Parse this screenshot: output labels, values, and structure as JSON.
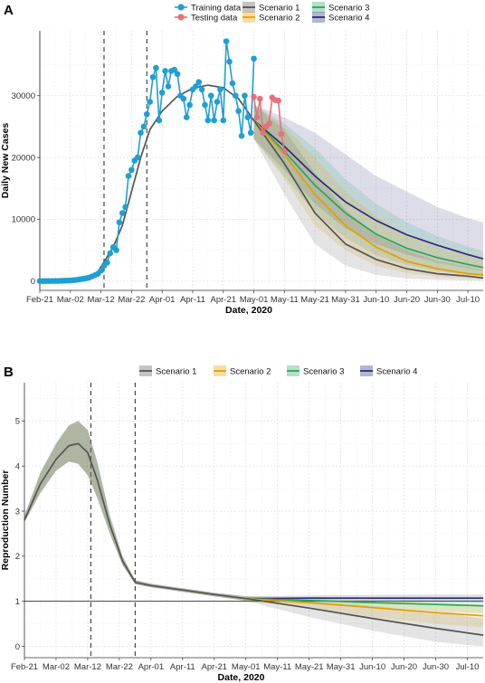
{
  "chart_data": [
    {
      "type": "line",
      "panel": "A",
      "xlabel": "Date, 2020",
      "ylabel": "Daily New Cases",
      "ylim": [
        -1500,
        40500
      ],
      "xlim": [
        "2020-02-21",
        "2020-07-15"
      ],
      "grid": true,
      "legend_position": "top",
      "x_ticks": [
        "Feb-21",
        "Mar-02",
        "Mar-12",
        "Mar-22",
        "Apr-01",
        "Apr-11",
        "Apr-21",
        "May-01",
        "May-11",
        "May-21",
        "May-31",
        "Jun-10",
        "Jun-20",
        "Jun-30",
        "Jul-10"
      ],
      "y_ticks": [
        0,
        10000,
        20000,
        30000
      ],
      "vlines": [
        "2020-02-21",
        "2020-03-13",
        "2020-03-27"
      ],
      "vline_styles": [
        "solid",
        "dashed",
        "dashed"
      ],
      "legend": [
        {
          "label": "Training data",
          "color": "#1f9fd3",
          "kind": "point-line"
        },
        {
          "label": "Scenario 1",
          "color": "#555555",
          "kind": "band-line"
        },
        {
          "label": "Scenario 3",
          "color": "#27a661",
          "kind": "band-line"
        },
        {
          "label": "Testing data",
          "color": "#e8707a",
          "kind": "point-line"
        },
        {
          "label": "Scenario 2",
          "color": "#e69f00",
          "kind": "band-line"
        },
        {
          "label": "Scenario 4",
          "color": "#2c2b7a",
          "kind": "band-line"
        }
      ],
      "training": {
        "name": "Training data",
        "color": "#1f9fd3",
        "x": [
          "2020-02-21",
          "2020-02-22",
          "2020-02-23",
          "2020-02-24",
          "2020-02-25",
          "2020-02-26",
          "2020-02-27",
          "2020-02-28",
          "2020-02-29",
          "2020-03-01",
          "2020-03-02",
          "2020-03-03",
          "2020-03-04",
          "2020-03-05",
          "2020-03-06",
          "2020-03-07",
          "2020-03-08",
          "2020-03-09",
          "2020-03-10",
          "2020-03-11",
          "2020-03-12",
          "2020-03-13",
          "2020-03-14",
          "2020-03-15",
          "2020-03-16",
          "2020-03-17",
          "2020-03-18",
          "2020-03-19",
          "2020-03-20",
          "2020-03-21",
          "2020-03-22",
          "2020-03-23",
          "2020-03-24",
          "2020-03-25",
          "2020-03-26",
          "2020-03-27",
          "2020-03-28",
          "2020-03-29",
          "2020-03-30",
          "2020-03-31",
          "2020-04-01",
          "2020-04-02",
          "2020-04-03",
          "2020-04-04",
          "2020-04-05",
          "2020-04-06",
          "2020-04-07",
          "2020-04-08",
          "2020-04-09",
          "2020-04-10",
          "2020-04-11",
          "2020-04-12",
          "2020-04-13",
          "2020-04-14",
          "2020-04-15",
          "2020-04-16",
          "2020-04-17",
          "2020-04-18",
          "2020-04-19",
          "2020-04-20",
          "2020-04-21",
          "2020-04-22",
          "2020-04-23",
          "2020-04-24",
          "2020-04-25",
          "2020-04-26",
          "2020-04-27",
          "2020-04-28",
          "2020-04-29",
          "2020-04-30",
          "2020-05-01"
        ],
        "y": [
          15,
          12,
          10,
          18,
          20,
          30,
          25,
          40,
          60,
          80,
          100,
          150,
          200,
          280,
          350,
          450,
          550,
          750,
          950,
          1200,
          1700,
          2500,
          3000,
          4500,
          5500,
          5000,
          9500,
          11000,
          12000,
          17000,
          18000,
          19500,
          20000,
          24000,
          25000,
          27000,
          29000,
          33000,
          34500,
          26000,
          30500,
          34000,
          31500,
          34000,
          34200,
          33500,
          30000,
          29500,
          26500,
          28500,
          31000,
          31500,
          32200,
          31000,
          28500,
          26000,
          30000,
          26000,
          29000,
          31000,
          26000,
          38800,
          35500,
          32000,
          30000,
          27500,
          23500,
          30000,
          26500,
          24000,
          36000
        ]
      },
      "testing": {
        "name": "Testing data",
        "color": "#e8707a",
        "x": [
          "2020-05-01",
          "2020-05-02",
          "2020-05-03",
          "2020-05-04",
          "2020-05-05",
          "2020-05-06",
          "2020-05-07",
          "2020-05-08",
          "2020-05-09",
          "2020-05-10",
          "2020-05-11"
        ],
        "y": [
          29800,
          26500,
          29500,
          24000,
          25000,
          25500,
          29700,
          29300,
          29200,
          23800,
          21000
        ]
      },
      "fit": {
        "name": "Scenario 1",
        "color": "#555555",
        "x": [
          "2020-03-01",
          "2020-03-06",
          "2020-03-11",
          "2020-03-16",
          "2020-03-19",
          "2020-03-22",
          "2020-03-25",
          "2020-03-28",
          "2020-04-01",
          "2020-04-06",
          "2020-04-11",
          "2020-04-16",
          "2020-04-21",
          "2020-04-26",
          "2020-05-01"
        ],
        "y": [
          20,
          300,
          1500,
          5500,
          9000,
          14500,
          20000,
          24500,
          27500,
          29900,
          31200,
          31700,
          31300,
          29500,
          26000
        ]
      },
      "x_forecast": [
        "2020-05-01",
        "2020-05-11",
        "2020-05-21",
        "2020-05-31",
        "2020-06-10",
        "2020-06-20",
        "2020-06-30",
        "2020-07-10",
        "2020-07-15"
      ],
      "series": [
        {
          "name": "Scenario 1",
          "color": "#555555",
          "values": [
            26000,
            19000,
            11000,
            6000,
            3500,
            2000,
            1200,
            800,
            500
          ],
          "lower": [
            23000,
            14000,
            6000,
            2500,
            1000,
            400,
            200,
            100,
            50
          ],
          "upper": [
            28500,
            24500,
            17500,
            11500,
            7500,
            5000,
            3300,
            2300,
            1800
          ]
        },
        {
          "name": "Scenario 2",
          "color": "#e69f00",
          "values": [
            26000,
            20500,
            14000,
            9000,
            5500,
            3200,
            2000,
            1200,
            1000
          ],
          "lower": [
            23000,
            16500,
            9000,
            5000,
            2500,
            1300,
            700,
            400,
            300
          ],
          "upper": [
            28500,
            25000,
            20000,
            14500,
            10500,
            7500,
            5500,
            4200,
            3600
          ]
        },
        {
          "name": "Scenario 3",
          "color": "#27a661",
          "values": [
            26000,
            21000,
            15500,
            11000,
            7600,
            5300,
            3800,
            2700,
            2200
          ],
          "lower": [
            23000,
            17000,
            11000,
            7000,
            4200,
            2600,
            1600,
            1000,
            800
          ],
          "upper": [
            28500,
            25500,
            21500,
            16500,
            12500,
            9500,
            7300,
            5600,
            4800
          ]
        },
        {
          "name": "Scenario 4",
          "color": "#2c2b7a",
          "values": [
            26000,
            21800,
            17000,
            12800,
            9800,
            7500,
            5800,
            4300,
            3600
          ],
          "lower": [
            23000,
            18000,
            12500,
            8500,
            6000,
            4300,
            3000,
            2100,
            1700
          ],
          "upper": [
            28500,
            26500,
            24000,
            20500,
            17000,
            14500,
            12000,
            10200,
            9500
          ]
        }
      ]
    },
    {
      "type": "line",
      "panel": "B",
      "xlabel": "Date, 2020",
      "ylabel": "Reproduction Number",
      "ylim": [
        -0.25,
        5.85
      ],
      "xlim": [
        "2020-02-21",
        "2020-07-15"
      ],
      "grid": true,
      "legend_position": "top",
      "x_ticks": [
        "Feb-21",
        "Mar-02",
        "Mar-12",
        "Mar-22",
        "Apr-01",
        "Apr-11",
        "Apr-21",
        "May-01",
        "May-11",
        "May-21",
        "May-31",
        "Jun-10",
        "Jun-20",
        "Jun-30",
        "Jul-10"
      ],
      "y_ticks": [
        0,
        1,
        2,
        3,
        4,
        5
      ],
      "hline": 1,
      "vlines": [
        "2020-03-13",
        "2020-03-27"
      ],
      "vline_styles": [
        "dashed",
        "dashed"
      ],
      "legend": [
        {
          "label": "Scenario 1",
          "color": "#555555"
        },
        {
          "label": "Scenario 2",
          "color": "#e69f00"
        },
        {
          "label": "Scenario 3",
          "color": "#27a661"
        },
        {
          "label": "Scenario 4",
          "color": "#2c2b7a"
        }
      ],
      "fit": {
        "name": "Scenario 1",
        "color": "#555555",
        "x": [
          "2020-02-21",
          "2020-02-26",
          "2020-03-02",
          "2020-03-06",
          "2020-03-09",
          "2020-03-12",
          "2020-03-15",
          "2020-03-19",
          "2020-03-23",
          "2020-03-27",
          "2020-04-01",
          "2020-04-11",
          "2020-04-21",
          "2020-05-01"
        ],
        "y": [
          2.8,
          3.6,
          4.15,
          4.45,
          4.5,
          4.3,
          3.7,
          2.7,
          1.9,
          1.42,
          1.35,
          1.25,
          1.15,
          1.06
        ],
        "lower": [
          2.75,
          3.4,
          3.9,
          4.1,
          4.05,
          3.8,
          3.3,
          2.5,
          1.8,
          1.38,
          1.31,
          1.21,
          1.11,
          1.01
        ],
        "upper": [
          2.9,
          3.85,
          4.5,
          4.9,
          5.0,
          4.8,
          4.1,
          2.9,
          2.0,
          1.47,
          1.39,
          1.29,
          1.19,
          1.11
        ]
      },
      "x_forecast": [
        "2020-05-01",
        "2020-05-21",
        "2020-06-10",
        "2020-06-30",
        "2020-07-15"
      ],
      "series": [
        {
          "name": "Scenario 1",
          "color": "#555555",
          "values": [
            1.06,
            0.85,
            0.62,
            0.4,
            0.25
          ],
          "lower": [
            1.01,
            0.65,
            0.35,
            0.1,
            0.0
          ],
          "upper": [
            1.11,
            1.0,
            0.9,
            0.75,
            0.62
          ]
        },
        {
          "name": "Scenario 2",
          "color": "#e69f00",
          "values": [
            1.06,
            0.97,
            0.86,
            0.75,
            0.68
          ],
          "lower": [
            1.01,
            0.85,
            0.65,
            0.5,
            0.42
          ],
          "upper": [
            1.11,
            1.07,
            1.02,
            0.97,
            0.92
          ]
        },
        {
          "name": "Scenario 3",
          "color": "#27a661",
          "values": [
            1.06,
            1.02,
            0.97,
            0.93,
            0.9
          ],
          "lower": [
            1.01,
            0.94,
            0.86,
            0.78,
            0.74
          ],
          "upper": [
            1.11,
            1.1,
            1.08,
            1.06,
            1.04
          ]
        },
        {
          "name": "Scenario 4",
          "color": "#2c2b7a",
          "values": [
            1.06,
            1.07,
            1.07,
            1.07,
            1.07
          ],
          "lower": [
            1.01,
            1.01,
            1.0,
            1.0,
            0.99
          ],
          "upper": [
            1.11,
            1.13,
            1.14,
            1.15,
            1.15
          ]
        }
      ]
    }
  ]
}
